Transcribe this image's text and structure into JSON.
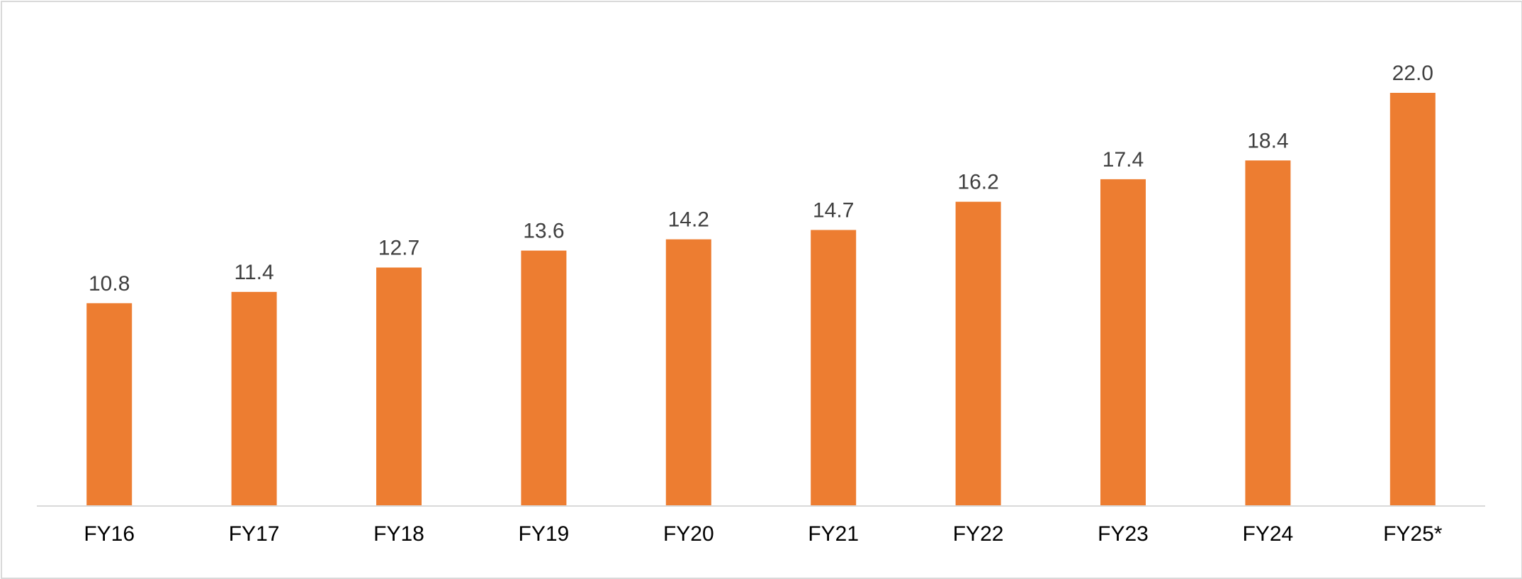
{
  "chart_data": {
    "type": "bar",
    "title": "",
    "xlabel": "",
    "ylabel": "",
    "categories": [
      "FY16",
      "FY17",
      "FY18",
      "FY19",
      "FY20",
      "FY21",
      "FY22",
      "FY23",
      "FY24",
      "FY25*"
    ],
    "values": [
      10.8,
      11.4,
      12.7,
      13.6,
      14.2,
      14.7,
      16.2,
      17.4,
      18.4,
      22.0
    ],
    "value_labels": [
      "10.8",
      "11.4",
      "12.7",
      "13.6",
      "14.2",
      "14.7",
      "16.2",
      "17.4",
      "18.4",
      "22.0"
    ],
    "ylim": [
      0,
      22.0
    ],
    "grid": false,
    "legend": "none",
    "colors": {
      "bar": "#ED7D31",
      "axis": "#d9d9d9",
      "label": "#404040",
      "tick": "#000000"
    }
  }
}
